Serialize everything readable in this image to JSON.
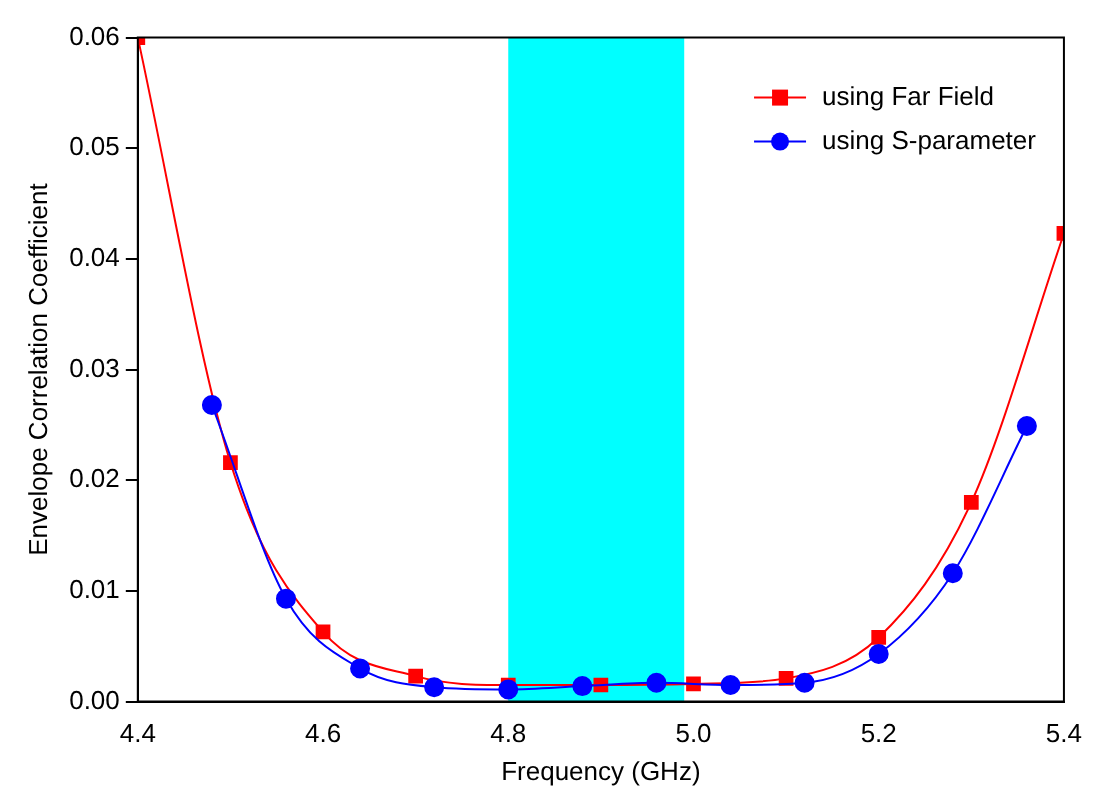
{
  "chart_data": {
    "type": "line",
    "xlabel": "Frequency (GHz)",
    "ylabel": "Envelope Correlation Coefficient",
    "xlim": [
      4.4,
      5.4
    ],
    "xticks": [
      {
        "value": 4.4,
        "label": "4.4"
      },
      {
        "value": 4.6,
        "label": "4.6"
      },
      {
        "value": 4.8,
        "label": "4.8"
      },
      {
        "value": 5,
        "label": "5.0"
      },
      {
        "value": 5.2,
        "label": "5.2"
      },
      {
        "value": 5.4,
        "label": "5.4"
      }
    ],
    "ylim": [
      0,
      0.06
    ],
    "yticks": [
      {
        "value": 0,
        "label": "0.00"
      },
      {
        "value": 0.01,
        "label": "0.01"
      },
      {
        "value": 0.02,
        "label": "0.02"
      },
      {
        "value": 0.03,
        "label": "0.03"
      },
      {
        "value": 0.04,
        "label": "0.04"
      },
      {
        "value": 0.05,
        "label": "0.05"
      },
      {
        "value": 0.06,
        "label": "0.06"
      }
    ],
    "series": [
      {
        "name": "using Far Field",
        "color": "#ff0000",
        "marker": "square",
        "x": [
          4.4,
          4.5,
          4.6,
          4.7,
          4.8,
          4.9,
          5.0,
          5.1,
          5.2,
          5.3,
          5.4
        ],
        "values": [
          0.06,
          0.0216,
          0.0063,
          0.0023,
          0.0015,
          0.0015,
          0.0016,
          0.0021,
          0.0058,
          0.018,
          0.0423
        ]
      },
      {
        "name": "using S-parameter",
        "color": "#0000ff",
        "marker": "circle",
        "x": [
          4.48,
          4.56,
          4.64,
          4.72,
          4.8,
          4.88,
          4.96,
          5.04,
          5.12,
          5.2,
          5.28,
          5.36
        ],
        "values": [
          0.0268,
          0.0093,
          0.003,
          0.0013,
          0.0011,
          0.0014,
          0.0017,
          0.0015,
          0.0017,
          0.0043,
          0.0116,
          0.0249
        ]
      }
    ],
    "bands": [
      {
        "axis": "x",
        "from": 4.8,
        "to": 4.99,
        "color": "#00ffff"
      }
    ],
    "grid": false,
    "legend": "top right"
  }
}
